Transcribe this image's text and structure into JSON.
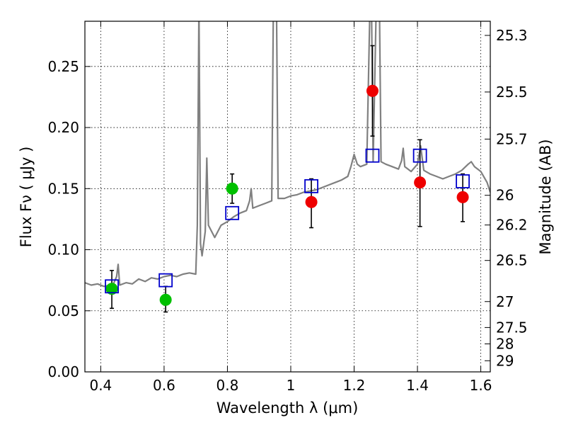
{
  "chart_data": {
    "type": "scatter",
    "xlabel": "Wavelength  λ (μm)",
    "ylabel": "Flux  Fν  ( μJy )",
    "y2label": "Magnitude (AB)",
    "xlim": [
      0.35,
      1.63
    ],
    "ylim": [
      0,
      0.287
    ],
    "grid": true,
    "x_ticks": [
      {
        "v": 0.4,
        "label": "0.4"
      },
      {
        "v": 0.6,
        "label": "0.6"
      },
      {
        "v": 0.8,
        "label": "0.8"
      },
      {
        "v": 1.0,
        "label": "1"
      },
      {
        "v": 1.2,
        "label": "1.2"
      },
      {
        "v": 1.4,
        "label": "1.4"
      },
      {
        "v": 1.6,
        "label": "1.6"
      }
    ],
    "y_ticks": [
      {
        "v": 0.0,
        "label": "0.00"
      },
      {
        "v": 0.05,
        "label": "0.05"
      },
      {
        "v": 0.1,
        "label": "0.10"
      },
      {
        "v": 0.15,
        "label": "0.15"
      },
      {
        "v": 0.2,
        "label": "0.20"
      },
      {
        "v": 0.25,
        "label": "0.25"
      }
    ],
    "mag_ticks": [
      {
        "mag": 25.3,
        "label": "25.3"
      },
      {
        "mag": 25.5,
        "label": "25.5"
      },
      {
        "mag": 25.7,
        "label": "25.7"
      },
      {
        "mag": 26.0,
        "label": "26"
      },
      {
        "mag": 26.2,
        "label": "26.2"
      },
      {
        "mag": 26.5,
        "label": "26.5"
      },
      {
        "mag": 27.0,
        "label": "27"
      },
      {
        "mag": 27.5,
        "label": "27.5"
      },
      {
        "mag": 28.0,
        "label": "28"
      },
      {
        "mag": 29.0,
        "label": "29"
      }
    ],
    "series": [
      {
        "kind": "line",
        "color": "#808080",
        "points": [
          [
            0.35,
            0.073
          ],
          [
            0.37,
            0.071
          ],
          [
            0.39,
            0.072
          ],
          [
            0.41,
            0.07
          ],
          [
            0.43,
            0.071
          ],
          [
            0.44,
            0.072
          ],
          [
            0.45,
            0.078
          ],
          [
            0.455,
            0.088
          ],
          [
            0.46,
            0.071
          ],
          [
            0.48,
            0.073
          ],
          [
            0.5,
            0.072
          ],
          [
            0.52,
            0.076
          ],
          [
            0.54,
            0.074
          ],
          [
            0.56,
            0.077
          ],
          [
            0.58,
            0.076
          ],
          [
            0.6,
            0.078
          ],
          [
            0.62,
            0.079
          ],
          [
            0.64,
            0.078
          ],
          [
            0.66,
            0.08
          ],
          [
            0.68,
            0.081
          ],
          [
            0.7,
            0.08
          ],
          [
            0.705,
            0.12
          ],
          [
            0.71,
            0.3
          ],
          [
            0.715,
            0.105
          ],
          [
            0.72,
            0.095
          ],
          [
            0.725,
            0.105
          ],
          [
            0.73,
            0.115
          ],
          [
            0.735,
            0.175
          ],
          [
            0.74,
            0.12
          ],
          [
            0.75,
            0.115
          ],
          [
            0.76,
            0.11
          ],
          [
            0.78,
            0.12
          ],
          [
            0.8,
            0.123
          ],
          [
            0.82,
            0.127
          ],
          [
            0.84,
            0.13
          ],
          [
            0.86,
            0.132
          ],
          [
            0.87,
            0.14
          ],
          [
            0.875,
            0.15
          ],
          [
            0.88,
            0.134
          ],
          [
            0.9,
            0.136
          ],
          [
            0.92,
            0.138
          ],
          [
            0.94,
            0.14
          ],
          [
            0.945,
            0.3
          ],
          [
            0.955,
            0.3
          ],
          [
            0.96,
            0.142
          ],
          [
            0.98,
            0.142
          ],
          [
            1.0,
            0.144
          ],
          [
            1.02,
            0.145
          ],
          [
            1.04,
            0.147
          ],
          [
            1.06,
            0.148
          ],
          [
            1.08,
            0.149
          ],
          [
            1.1,
            0.151
          ],
          [
            1.12,
            0.153
          ],
          [
            1.14,
            0.155
          ],
          [
            1.16,
            0.157
          ],
          [
            1.18,
            0.16
          ],
          [
            1.19,
            0.168
          ],
          [
            1.2,
            0.178
          ],
          [
            1.21,
            0.17
          ],
          [
            1.22,
            0.168
          ],
          [
            1.24,
            0.17
          ],
          [
            1.25,
            0.3
          ],
          [
            1.255,
            0.3
          ],
          [
            1.26,
            0.172
          ],
          [
            1.27,
            0.3
          ],
          [
            1.28,
            0.3
          ],
          [
            1.285,
            0.172
          ],
          [
            1.3,
            0.17
          ],
          [
            1.32,
            0.168
          ],
          [
            1.34,
            0.166
          ],
          [
            1.35,
            0.173
          ],
          [
            1.355,
            0.183
          ],
          [
            1.36,
            0.168
          ],
          [
            1.38,
            0.164
          ],
          [
            1.4,
            0.17
          ],
          [
            1.41,
            0.185
          ],
          [
            1.42,
            0.165
          ],
          [
            1.44,
            0.162
          ],
          [
            1.46,
            0.16
          ],
          [
            1.48,
            0.158
          ],
          [
            1.5,
            0.16
          ],
          [
            1.52,
            0.162
          ],
          [
            1.54,
            0.165
          ],
          [
            1.56,
            0.17
          ],
          [
            1.57,
            0.172
          ],
          [
            1.58,
            0.168
          ],
          [
            1.6,
            0.164
          ],
          [
            1.62,
            0.155
          ],
          [
            1.63,
            0.147
          ]
        ]
      },
      {
        "kind": "circle",
        "color": "#00c000",
        "points": [
          {
            "x": 0.435,
            "y": 0.068,
            "err": [
              0.052,
              0.083
            ]
          },
          {
            "x": 0.605,
            "y": 0.059,
            "err": [
              0.049,
              0.07
            ]
          },
          {
            "x": 0.815,
            "y": 0.15,
            "err": [
              0.138,
              0.162
            ]
          }
        ]
      },
      {
        "kind": "circle",
        "color": "#ee0000",
        "points": [
          {
            "x": 1.065,
            "y": 0.139,
            "err": [
              0.118,
              0.158
            ]
          },
          {
            "x": 1.258,
            "y": 0.23,
            "err": [
              0.193,
              0.267
            ]
          },
          {
            "x": 1.408,
            "y": 0.155,
            "err": [
              0.119,
              0.19
            ]
          },
          {
            "x": 1.543,
            "y": 0.143,
            "err": [
              0.123,
              0.162
            ]
          }
        ]
      },
      {
        "kind": "square",
        "color": "#0000cc",
        "points": [
          {
            "x": 0.435,
            "y": 0.07
          },
          {
            "x": 0.605,
            "y": 0.075
          },
          {
            "x": 0.815,
            "y": 0.13
          },
          {
            "x": 1.065,
            "y": 0.152
          },
          {
            "x": 1.258,
            "y": 0.177
          },
          {
            "x": 1.408,
            "y": 0.177
          },
          {
            "x": 1.543,
            "y": 0.156
          }
        ]
      }
    ]
  }
}
